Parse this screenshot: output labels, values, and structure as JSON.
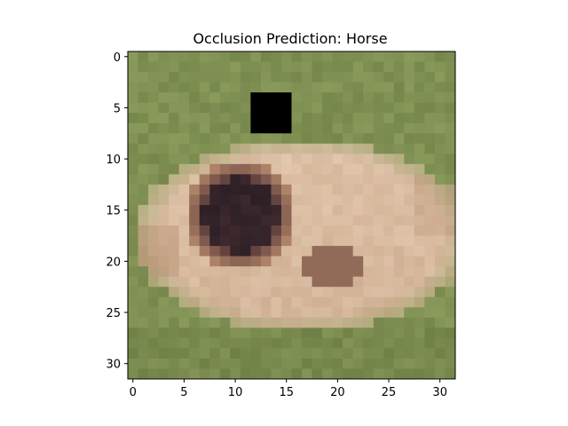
{
  "chart_data": {
    "type": "heatmap",
    "title": "Occlusion Prediction: Horse",
    "xlabel": "",
    "ylabel": "",
    "grid": false,
    "legend": "none",
    "image_size": [
      32,
      32
    ],
    "xlim": [
      -0.5,
      31.5
    ],
    "ylim": [
      31.5,
      -0.5
    ],
    "x_ticks": [
      0,
      5,
      10,
      15,
      20,
      25,
      30
    ],
    "y_ticks": [
      0,
      5,
      10,
      15,
      20,
      25,
      30
    ],
    "occlusion_patch": {
      "x_range": [
        12,
        15
      ],
      "y_range": [
        4,
        7
      ],
      "color": "#000000"
    },
    "palette": {
      "grass": "#8a9a5b",
      "grass_dark": "#6e7f45",
      "fur_light": "#e2c8ae",
      "fur_mid": "#cfae92",
      "fur_shadow": "#b08468",
      "eye_dark": "#2c1f26",
      "eye_rim": "#5a3a3a"
    }
  }
}
